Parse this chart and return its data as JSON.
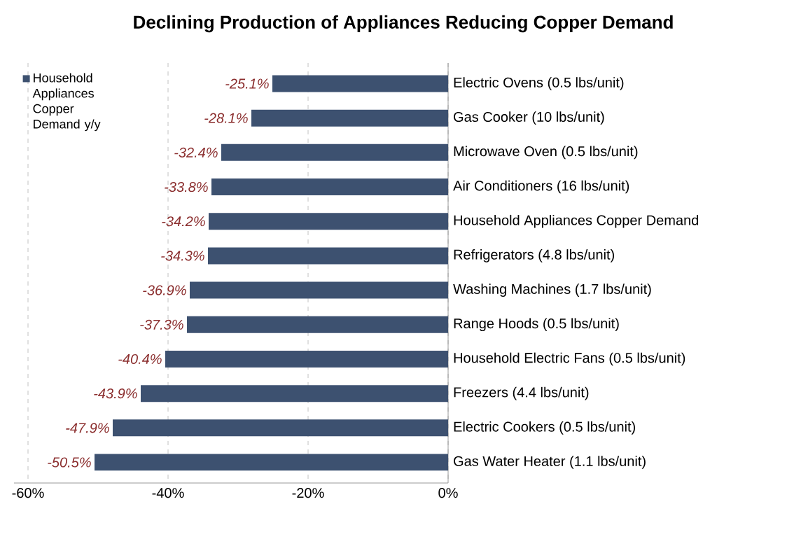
{
  "chart_data": {
    "type": "bar",
    "orientation": "horizontal",
    "title": "Declining Production of Appliances Reducing Copper Demand",
    "categories": [
      "Electric Ovens (0.5 lbs/unit)",
      "Gas Cooker (10 lbs/unit)",
      "Microwave Oven (0.5 lbs/unit)",
      "Air Conditioners (16 lbs/unit)",
      "Household Appliances Copper Demand",
      "Refrigerators (4.8 lbs/unit)",
      "Washing Machines (1.7 lbs/unit)",
      "Range Hoods (0.5 lbs/unit)",
      "Household Electric Fans (0.5 lbs/unit)",
      "Freezers (4.4 lbs/unit)",
      "Electric Cookers (0.5 lbs/unit)",
      "Gas Water Heater (1.1 lbs/unit)"
    ],
    "series": [
      {
        "name": "Household Appliances Copper Demand y/y",
        "color": "#3d5170",
        "values": [
          -25.1,
          -28.1,
          -32.4,
          -33.8,
          -34.2,
          -34.3,
          -36.9,
          -37.3,
          -40.4,
          -43.9,
          -47.9,
          -50.5
        ],
        "value_labels": [
          "-25.1%",
          "-28.1%",
          "-32.4%",
          "-33.8%",
          "-34.2%",
          "-34.3%",
          "-36.9%",
          "-37.3%",
          "-40.4%",
          "-43.9%",
          "-47.9%",
          "-50.5%"
        ]
      }
    ],
    "xlim": [
      -62,
      0
    ],
    "xticks": [
      {
        "value": -60,
        "label": "-60%"
      },
      {
        "value": -40,
        "label": "-40%"
      },
      {
        "value": -20,
        "label": "-20%"
      },
      {
        "value": 0,
        "label": "0%"
      }
    ],
    "grid": "x",
    "legend": "top left"
  }
}
